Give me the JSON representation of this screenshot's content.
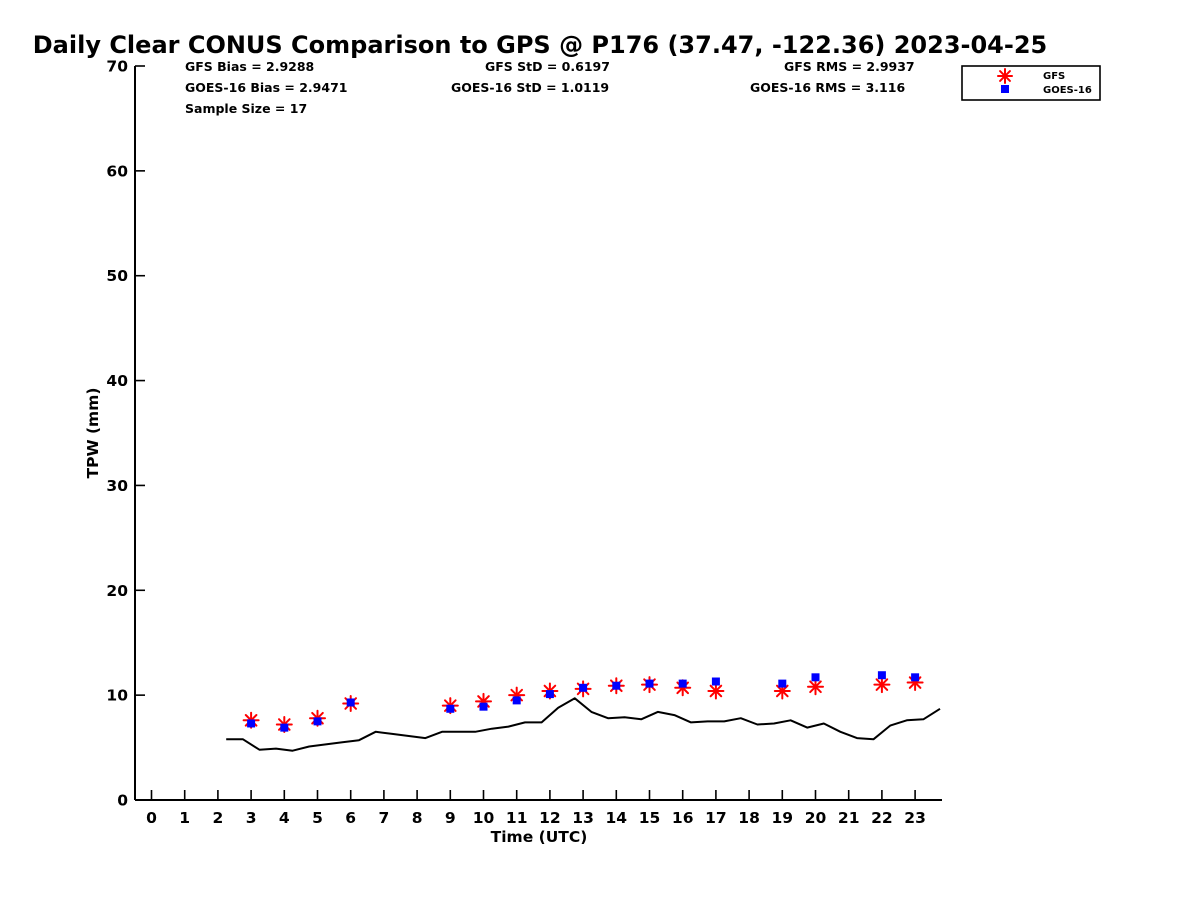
{
  "chart_data": {
    "type": "scatter",
    "title": "Daily Clear CONUS Comparison to GPS @ P176 (37.47, -122.36) 2023-04-25",
    "xlabel": "Time (UTC)",
    "ylabel": "TPW (mm)",
    "xlim": [
      -0.5,
      23.75
    ],
    "ylim": [
      0,
      70
    ],
    "x_ticks": [
      "0",
      "1",
      "2",
      "3",
      "4",
      "5",
      "6",
      "7",
      "8",
      "9",
      "10",
      "11",
      "12",
      "13",
      "14",
      "15",
      "16",
      "17",
      "18",
      "19",
      "20",
      "21",
      "22",
      "23"
    ],
    "y_ticks": [
      "0",
      "10",
      "20",
      "30",
      "40",
      "50",
      "60",
      "70"
    ],
    "grid": false,
    "legend_position": "top-right",
    "stats": {
      "gfs_bias": "GFS Bias = 2.9288",
      "gfs_std": "GFS StD = 0.6197",
      "gfs_rms": "GFS RMS = 2.9937",
      "goes_bias": "GOES-16 Bias = 2.9471",
      "goes_std": "GOES-16 StD = 1.0119",
      "goes_rms": "GOES-16 RMS = 3.116",
      "sample_size": "Sample Size = 17"
    },
    "series": [
      {
        "name": "GFS",
        "kind": "scatter",
        "marker": "asterisk",
        "color": "#ff0000",
        "x": [
          3,
          4,
          5,
          6,
          9,
          10,
          11,
          12,
          13,
          14,
          15,
          16,
          17,
          19,
          20,
          22,
          23
        ],
        "y": [
          7.6,
          7.2,
          7.8,
          9.2,
          9.0,
          9.4,
          10.0,
          10.4,
          10.6,
          10.9,
          11.0,
          10.7,
          10.4,
          10.4,
          10.8,
          11.0,
          11.2
        ]
      },
      {
        "name": "GOES-16",
        "kind": "scatter",
        "marker": "square",
        "color": "#0000ff",
        "x": [
          3,
          4,
          5,
          6,
          9,
          10,
          11,
          12,
          13,
          14,
          15,
          16,
          17,
          19,
          20,
          22,
          23
        ],
        "y": [
          7.3,
          6.9,
          7.5,
          9.3,
          8.7,
          8.9,
          9.5,
          10.1,
          10.7,
          10.9,
          11.1,
          11.1,
          11.3,
          11.1,
          11.7,
          11.9,
          11.7
        ]
      },
      {
        "kind": "line",
        "color": "#000000",
        "x": [
          2.25,
          2.75,
          3.25,
          3.75,
          4.25,
          4.75,
          5.25,
          5.75,
          6.25,
          6.75,
          7.25,
          7.75,
          8.25,
          8.75,
          9.25,
          9.75,
          10.25,
          10.75,
          11.25,
          11.75,
          12.25,
          12.75,
          13.25,
          13.75,
          14.25,
          14.75,
          15.25,
          15.75,
          16.25,
          16.75,
          17.25,
          17.75,
          18.25,
          18.75,
          19.25,
          19.75,
          20.25,
          20.75,
          21.25,
          21.75,
          22.25,
          22.75,
          23.25,
          23.75
        ],
        "y": [
          5.8,
          5.8,
          4.8,
          4.9,
          4.7,
          5.1,
          5.3,
          5.5,
          5.7,
          6.5,
          6.3,
          6.1,
          5.9,
          6.5,
          6.5,
          6.5,
          6.8,
          7.0,
          7.4,
          7.4,
          8.8,
          9.7,
          8.4,
          7.8,
          7.9,
          7.7,
          8.4,
          8.1,
          7.4,
          7.5,
          7.5,
          7.8,
          7.2,
          7.3,
          7.6,
          6.9,
          7.3,
          6.5,
          5.9,
          5.8,
          7.1,
          7.6,
          7.7,
          8.7
        ]
      }
    ]
  }
}
